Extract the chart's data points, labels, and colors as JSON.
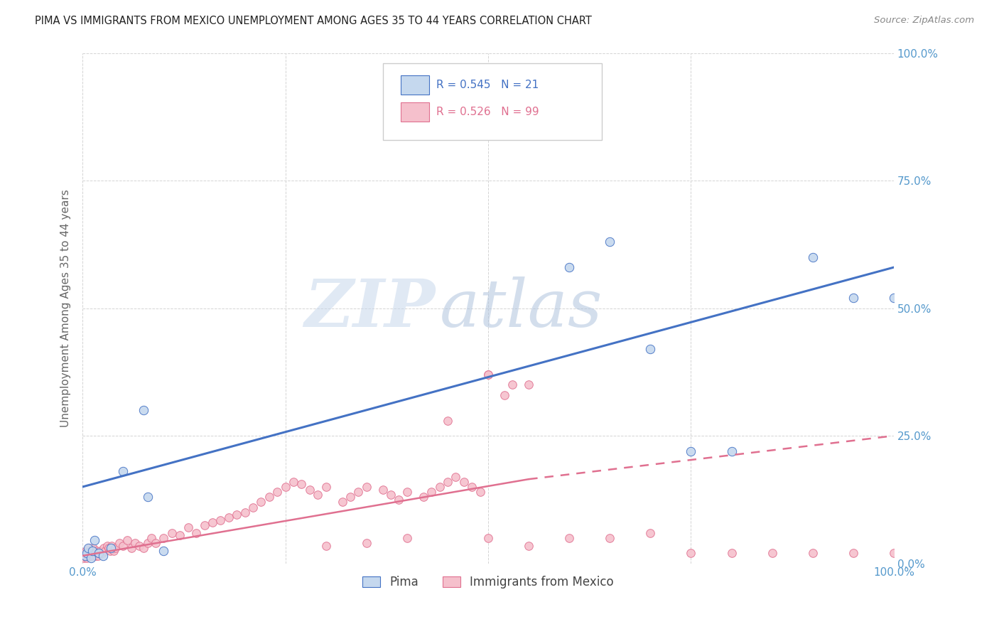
{
  "title": "PIMA VS IMMIGRANTS FROM MEXICO UNEMPLOYMENT AMONG AGES 35 TO 44 YEARS CORRELATION CHART",
  "source": "Source: ZipAtlas.com",
  "ylabel": "Unemployment Among Ages 35 to 44 years",
  "legend_label1": "Pima",
  "legend_label2": "Immigrants from Mexico",
  "legend_r1": "R = 0.545",
  "legend_n1": "N = 21",
  "legend_r2": "R = 0.526",
  "legend_n2": "N = 99",
  "color_blue_fill": "#c5d8ee",
  "color_blue_edge": "#4472c4",
  "color_pink_fill": "#f5c0cc",
  "color_pink_edge": "#e07090",
  "color_blue_line": "#4472c4",
  "color_pink_line": "#e07090",
  "pima_x": [
    0.3,
    0.5,
    0.7,
    1.0,
    1.2,
    1.5,
    2.0,
    2.5,
    3.5,
    5.0,
    7.5,
    8.0,
    10.0,
    60.0,
    65.0,
    70.0,
    75.0,
    80.0,
    90.0,
    95.0,
    100.0
  ],
  "pima_y": [
    1.5,
    2.0,
    3.0,
    1.0,
    2.5,
    4.5,
    2.0,
    1.5,
    3.0,
    18.0,
    30.0,
    13.0,
    2.5,
    58.0,
    63.0,
    42.0,
    22.0,
    22.0,
    60.0,
    52.0,
    52.0
  ],
  "mexico_x_cluster": [
    0.1,
    0.15,
    0.2,
    0.3,
    0.4,
    0.5,
    0.6,
    0.7,
    0.8,
    0.9,
    1.0,
    1.1,
    1.2,
    1.3,
    1.4,
    1.5,
    1.6,
    1.7,
    1.8,
    1.9,
    2.0,
    2.2,
    2.4,
    2.6,
    2.8,
    3.0,
    3.2,
    3.4,
    3.6,
    3.8,
    4.0,
    4.5,
    5.0,
    5.5,
    6.0,
    6.5,
    7.0,
    7.5,
    8.0,
    8.5,
    9.0,
    10.0,
    11.0,
    12.0,
    13.0,
    14.0,
    15.0,
    16.0,
    17.0,
    18.0,
    19.0,
    20.0,
    21.0,
    22.0,
    23.0,
    24.0,
    25.0,
    26.0,
    27.0,
    28.0,
    29.0,
    30.0,
    32.0,
    33.0,
    34.0,
    35.0,
    37.0,
    38.0,
    39.0,
    40.0,
    42.0,
    43.0,
    44.0,
    45.0,
    46.0,
    47.0,
    48.0,
    49.0,
    50.0,
    52.0,
    53.0
  ],
  "mexico_y_cluster": [
    1.5,
    1.0,
    2.0,
    1.5,
    2.5,
    1.0,
    2.0,
    1.5,
    3.0,
    1.5,
    2.5,
    1.5,
    2.0,
    3.0,
    1.5,
    2.0,
    1.5,
    2.5,
    2.0,
    1.5,
    2.0,
    2.5,
    2.0,
    3.0,
    2.5,
    3.5,
    3.0,
    2.5,
    3.5,
    2.5,
    3.0,
    4.0,
    3.5,
    4.5,
    3.0,
    4.0,
    3.5,
    3.0,
    4.0,
    5.0,
    4.0,
    5.0,
    6.0,
    5.5,
    7.0,
    6.0,
    7.5,
    8.0,
    8.5,
    9.0,
    9.5,
    10.0,
    11.0,
    12.0,
    13.0,
    14.0,
    15.0,
    16.0,
    15.5,
    14.5,
    13.5,
    15.0,
    12.0,
    13.0,
    14.0,
    15.0,
    14.5,
    13.5,
    12.5,
    14.0,
    13.0,
    14.0,
    15.0,
    16.0,
    17.0,
    16.0,
    15.0,
    14.0,
    37.0,
    33.0,
    35.0
  ],
  "mexico_x_sparse": [
    45.0,
    50.0,
    55.0,
    60.0,
    65.0,
    70.0,
    75.0,
    80.0,
    85.0,
    90.0,
    95.0,
    100.0,
    105.0,
    30.0,
    35.0,
    40.0,
    50.0,
    55.0
  ],
  "mexico_y_sparse": [
    28.0,
    37.0,
    35.0,
    5.0,
    5.0,
    6.0,
    2.0,
    2.0,
    2.0,
    2.0,
    2.0,
    2.0,
    2.0,
    3.5,
    4.0,
    5.0,
    5.0,
    3.5
  ],
  "blue_line_x0": 0,
  "blue_line_y0": 15.0,
  "blue_line_x1": 100,
  "blue_line_y1": 58.0,
  "pink_solid_x0": 0,
  "pink_solid_y0": 1.5,
  "pink_solid_x1": 55,
  "pink_solid_y1": 16.5,
  "pink_dash_x0": 55,
  "pink_dash_y0": 16.5,
  "pink_dash_x1": 100,
  "pink_dash_y1": 25.0,
  "watermark_zip": "ZIP",
  "watermark_atlas": "atlas",
  "xlim": [
    0,
    100
  ],
  "ylim": [
    0,
    100
  ],
  "x_ticks": [
    0,
    25,
    50,
    75,
    100
  ],
  "x_labels": [
    "0.0%",
    "25.0%",
    "50.0%",
    "75.0%",
    "100.0%"
  ],
  "y_ticks": [
    0,
    25,
    50,
    75,
    100
  ],
  "y_labels": [
    "0.0%",
    "25.0%",
    "50.0%",
    "75.0%",
    "100.0%"
  ]
}
